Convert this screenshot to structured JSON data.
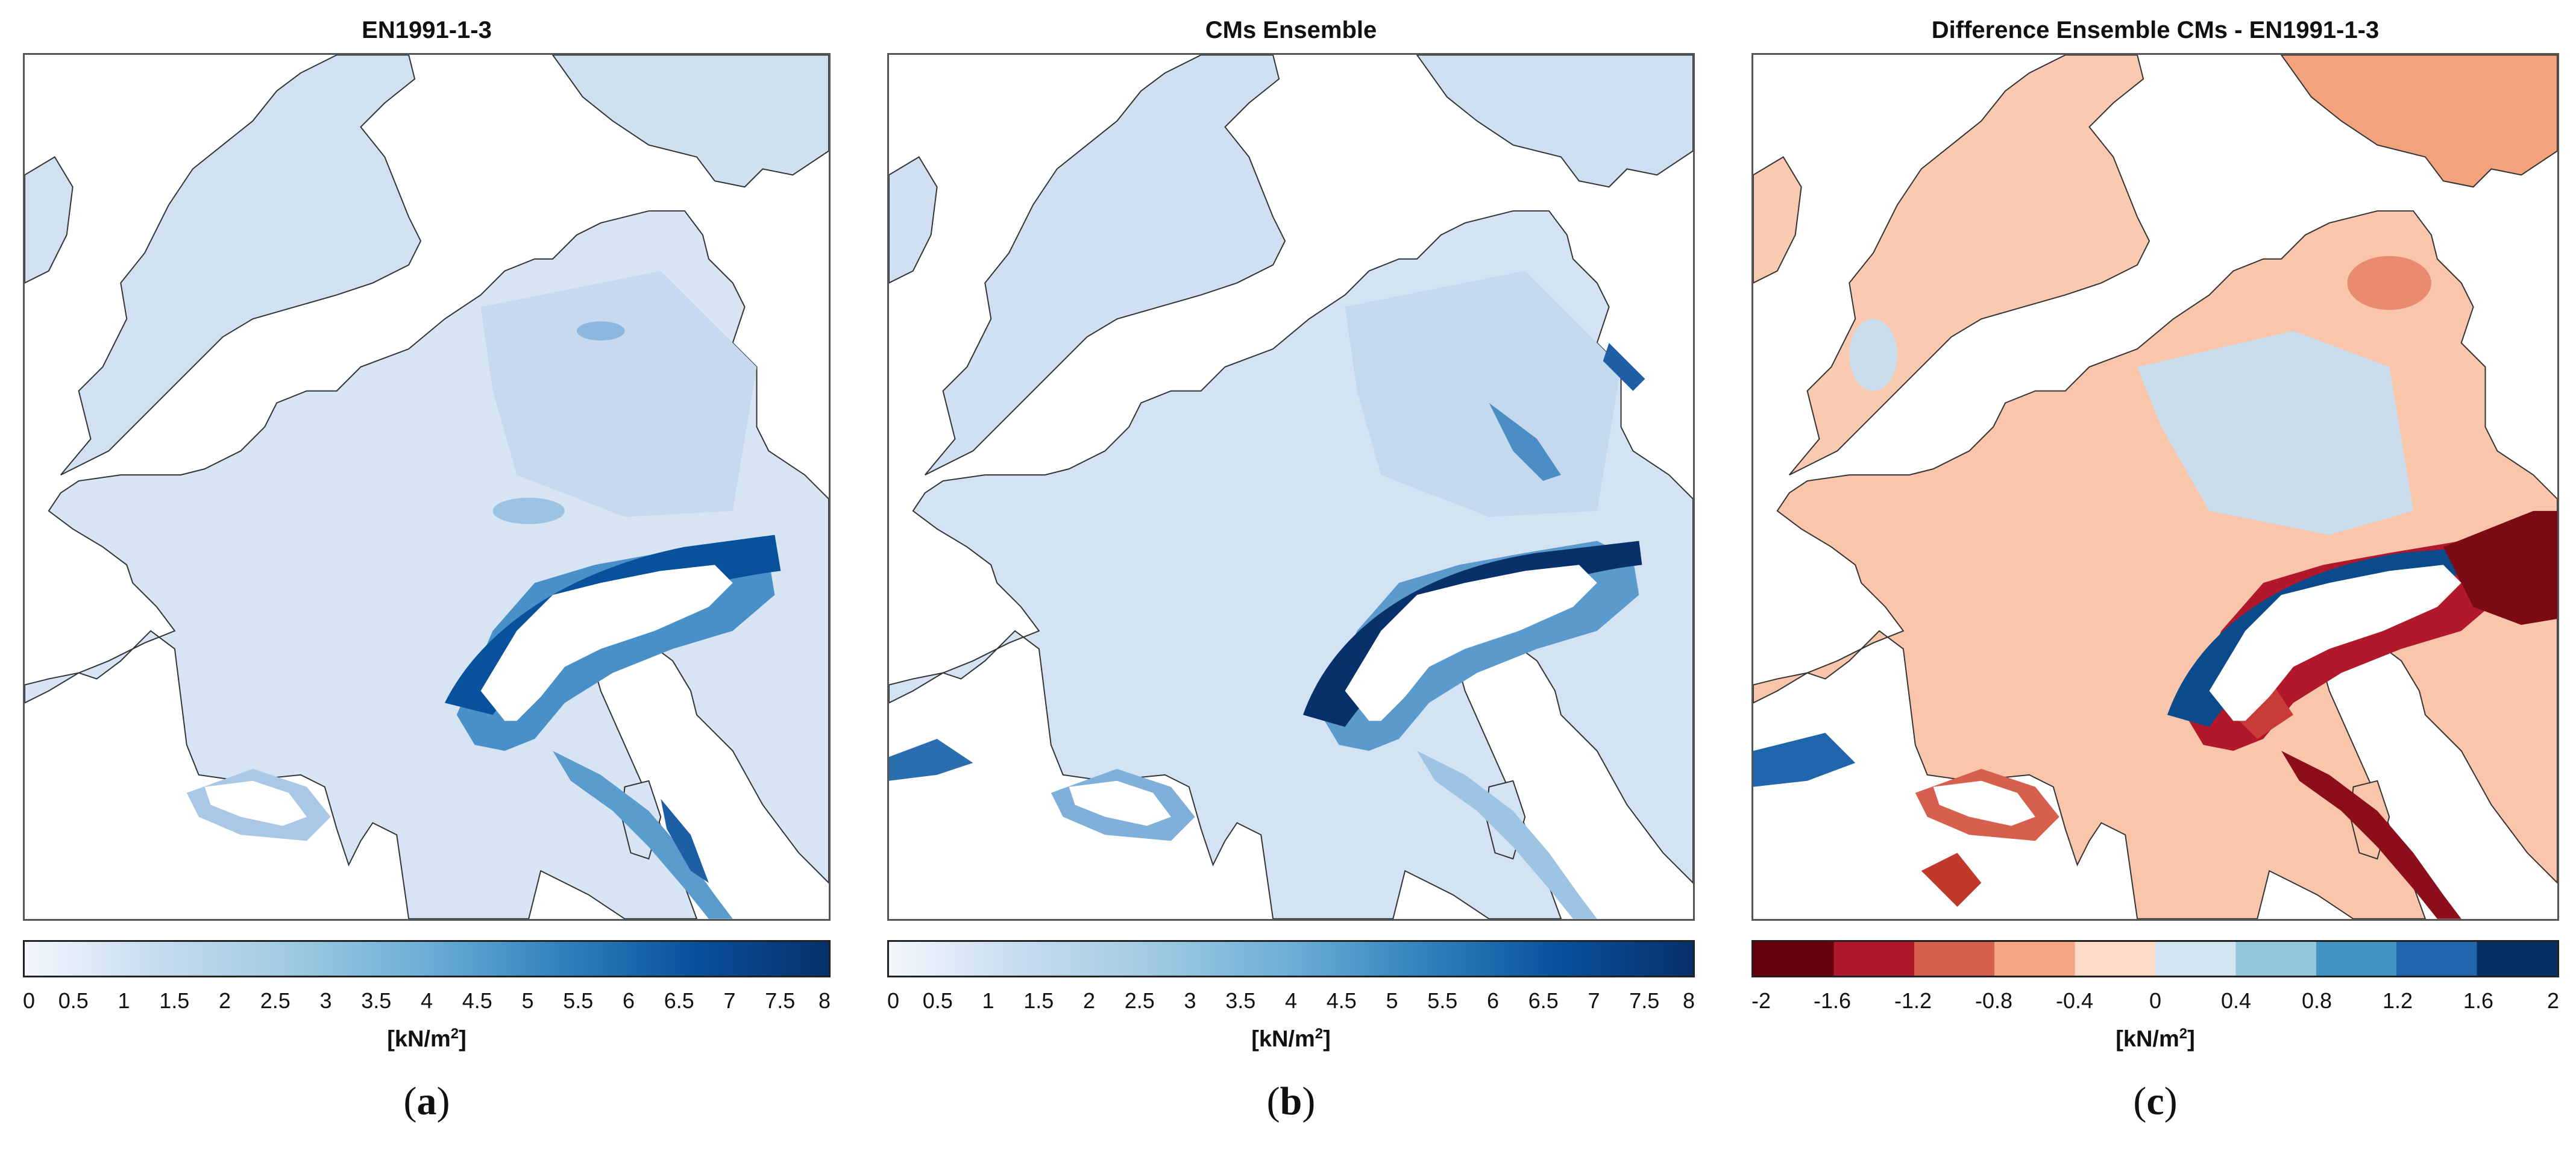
{
  "panels": [
    {
      "title": "EN1991-1-3",
      "colorbar": {
        "type": "continuous",
        "colors": [
          "#f3f7fd",
          "#c6dbef",
          "#9ecae1",
          "#6baed6",
          "#3182bd",
          "#08519c",
          "#08306b"
        ],
        "ticks": [
          "0",
          "0.5",
          "1",
          "1.5",
          "2",
          "2.5",
          "3",
          "3.5",
          "4",
          "4.5",
          "5",
          "5.5",
          "6",
          "6.5",
          "7",
          "7.5",
          "8"
        ],
        "unit_main": "[kN/m",
        "unit_sup": "2",
        "unit_end": "]"
      },
      "label_open": "(",
      "label_letter": "a",
      "label_close": ")"
    },
    {
      "title": "CMs Ensemble",
      "colorbar": {
        "type": "continuous",
        "colors": [
          "#f3f7fd",
          "#c6dbef",
          "#9ecae1",
          "#6baed6",
          "#3182bd",
          "#08519c",
          "#08306b"
        ],
        "ticks": [
          "0",
          "0.5",
          "1",
          "1.5",
          "2",
          "2.5",
          "3",
          "3.5",
          "4",
          "4.5",
          "5",
          "5.5",
          "6",
          "6.5",
          "7",
          "7.5",
          "8"
        ],
        "unit_main": "[kN/m",
        "unit_sup": "2",
        "unit_end": "]"
      },
      "label_open": "(",
      "label_letter": "b",
      "label_close": ")"
    },
    {
      "title": "Difference Ensemble CMs - EN1991-1-3",
      "colorbar": {
        "type": "discrete",
        "colors": [
          "#67000d",
          "#b2182b",
          "#d6604d",
          "#f4a582",
          "#fddbc7",
          "#d1e5f0",
          "#92c5de",
          "#4393c3",
          "#2166ac",
          "#053061"
        ],
        "ticks": [
          "-2",
          "-1.6",
          "-1.2",
          "-0.8",
          "-0.4",
          "0",
          "0.4",
          "0.8",
          "1.2",
          "1.6",
          "2"
        ],
        "unit_main": "[kN/m",
        "unit_sup": "2",
        "unit_end": "]"
      },
      "label_open": "(",
      "label_letter": "c",
      "label_close": ")"
    }
  ]
}
